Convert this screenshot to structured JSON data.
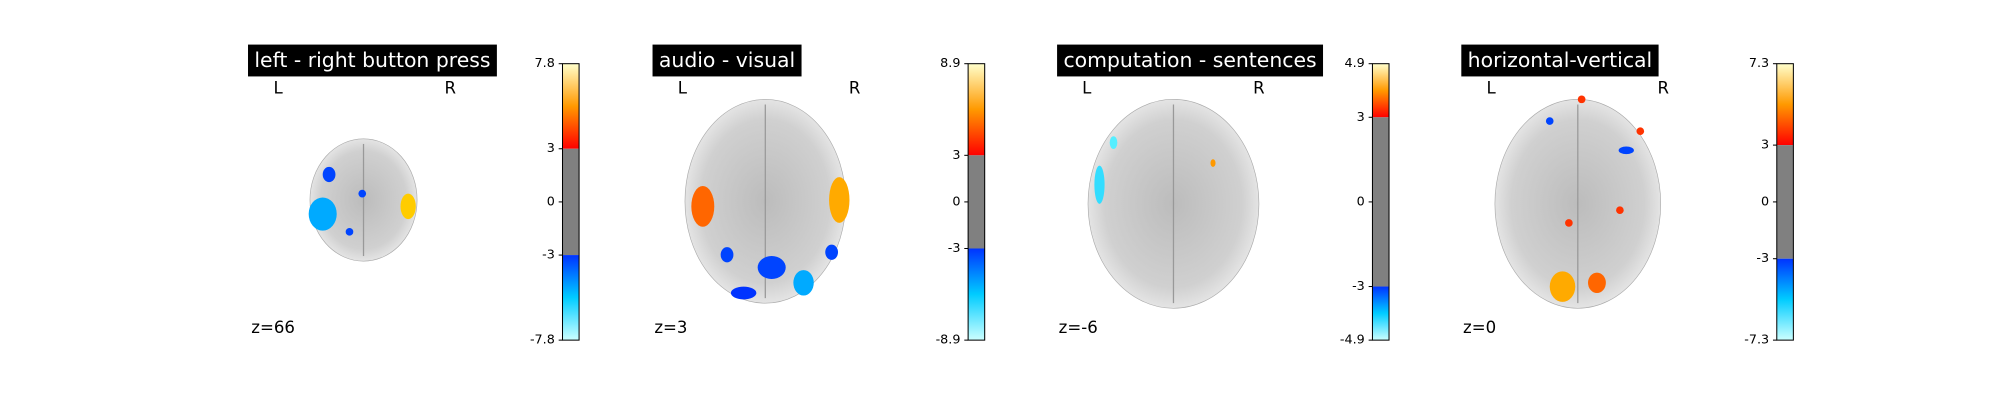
{
  "panels": [
    {
      "title": "left - right button press",
      "left": "L",
      "right": "R",
      "slice": "z=66",
      "colorbar_ticks": [
        7.8,
        3,
        0,
        -3,
        -7.8
      ]
    },
    {
      "title": "audio - visual",
      "left": "L",
      "right": "R",
      "slice": "z=3",
      "colorbar_ticks": [
        8.9,
        3,
        0,
        -3,
        -8.9
      ]
    },
    {
      "title": "computation - sentences",
      "left": "L",
      "right": "R",
      "slice": "z=-6",
      "colorbar_ticks": [
        4.9,
        3,
        0,
        -3,
        -4.9
      ]
    },
    {
      "title": "horizontal-vertical",
      "left": "L",
      "right": "R",
      "slice": "z=0",
      "colorbar_ticks": [
        7.3,
        3,
        0,
        -3,
        -7.3
      ]
    }
  ]
}
